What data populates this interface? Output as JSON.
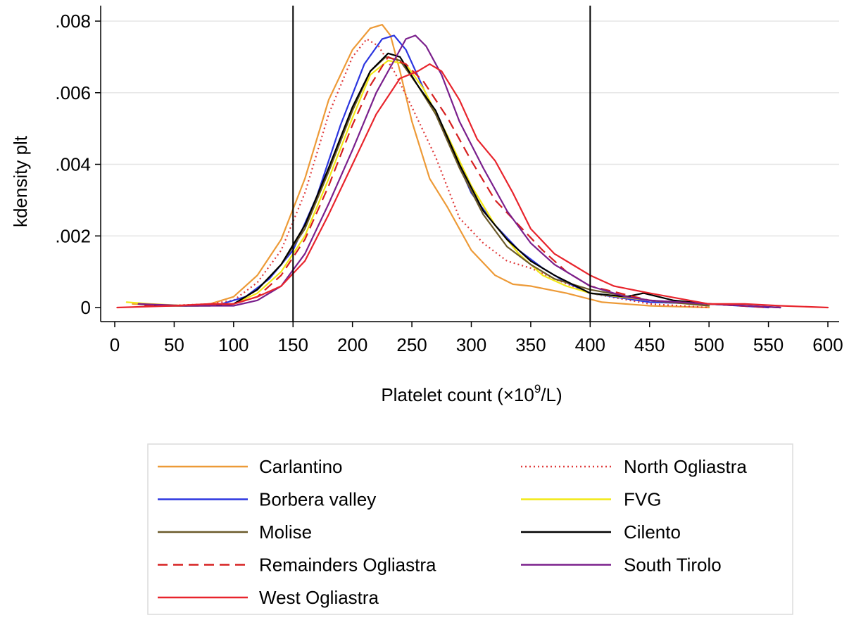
{
  "chart_data": {
    "type": "line",
    "title": "",
    "xlabel": "Platelet count (×10",
    "xlabel_sup": "9",
    "xlabel_suffix": "/L)",
    "ylabel": "kdensity plt",
    "xlim": [
      0,
      600
    ],
    "ylim": [
      0,
      0.008
    ],
    "xticks": [
      0,
      50,
      100,
      150,
      200,
      250,
      300,
      350,
      400,
      450,
      500,
      550,
      600
    ],
    "xtick_labels": [
      "0",
      "50",
      "100",
      "150",
      "200",
      "250",
      "300",
      "350",
      "400",
      "450",
      "500",
      "550",
      "600"
    ],
    "yticks": [
      0,
      0.002,
      0.004,
      0.006,
      0.008
    ],
    "ytick_labels": [
      "0",
      ".002",
      ".004",
      ".006",
      ".008"
    ],
    "grid": true,
    "reference_lines_x": [
      150,
      400
    ],
    "legend_position": "bottom",
    "series": [
      {
        "name": "Carlantino",
        "color": "#ed9a37",
        "dash": "solid",
        "points": [
          [
            15,
            0.0001
          ],
          [
            50,
            5e-05
          ],
          [
            80,
            0.0001
          ],
          [
            100,
            0.0003
          ],
          [
            120,
            0.0009
          ],
          [
            140,
            0.0019
          ],
          [
            160,
            0.0036
          ],
          [
            180,
            0.0058
          ],
          [
            200,
            0.0072
          ],
          [
            215,
            0.0078
          ],
          [
            225,
            0.0079
          ],
          [
            232,
            0.0076
          ],
          [
            240,
            0.0066
          ],
          [
            250,
            0.0052
          ],
          [
            265,
            0.0036
          ],
          [
            280,
            0.0028
          ],
          [
            300,
            0.0016
          ],
          [
            320,
            0.0009
          ],
          [
            335,
            0.00065
          ],
          [
            350,
            0.0006
          ],
          [
            380,
            0.0004
          ],
          [
            410,
            0.00015
          ],
          [
            450,
            5e-05
          ],
          [
            500,
            0.0
          ]
        ]
      },
      {
        "name": "North Ogliastra",
        "color": "#e03a3a",
        "dash": "dotted",
        "points": [
          [
            40,
            5e-05
          ],
          [
            80,
            0.0001
          ],
          [
            100,
            0.0002
          ],
          [
            120,
            0.0007
          ],
          [
            140,
            0.0016
          ],
          [
            160,
            0.0032
          ],
          [
            180,
            0.0054
          ],
          [
            200,
            0.007
          ],
          [
            212,
            0.0075
          ],
          [
            222,
            0.0073
          ],
          [
            235,
            0.0066
          ],
          [
            250,
            0.0056
          ],
          [
            270,
            0.0042
          ],
          [
            290,
            0.0025
          ],
          [
            310,
            0.0018
          ],
          [
            330,
            0.0013
          ],
          [
            350,
            0.0011
          ],
          [
            370,
            0.0008
          ],
          [
            400,
            0.0004
          ],
          [
            450,
            0.0001
          ],
          [
            500,
            0.0
          ]
        ]
      },
      {
        "name": "Borbera valley",
        "color": "#2b35e0",
        "dash": "solid",
        "points": [
          [
            20,
            0.0001
          ],
          [
            60,
            5e-05
          ],
          [
            90,
            0.0001
          ],
          [
            110,
            0.0003
          ],
          [
            130,
            0.0008
          ],
          [
            150,
            0.0016
          ],
          [
            170,
            0.0031
          ],
          [
            190,
            0.0051
          ],
          [
            210,
            0.0068
          ],
          [
            225,
            0.0075
          ],
          [
            235,
            0.0076
          ],
          [
            245,
            0.0072
          ],
          [
            260,
            0.0061
          ],
          [
            280,
            0.0047
          ],
          [
            300,
            0.0032
          ],
          [
            320,
            0.0023
          ],
          [
            340,
            0.0016
          ],
          [
            360,
            0.0011
          ],
          [
            380,
            0.0007
          ],
          [
            400,
            0.0004
          ],
          [
            450,
            0.00015
          ],
          [
            500,
            0.0001
          ],
          [
            550,
            0.0
          ]
        ]
      },
      {
        "name": "FVG",
        "color": "#f2e814",
        "dash": "solid",
        "points": [
          [
            10,
            0.00015
          ],
          [
            30,
            0.0001
          ],
          [
            60,
            5e-05
          ],
          [
            100,
            0.0001
          ],
          [
            120,
            0.0004
          ],
          [
            140,
            0.001
          ],
          [
            160,
            0.002
          ],
          [
            180,
            0.0036
          ],
          [
            200,
            0.0053
          ],
          [
            215,
            0.0065
          ],
          [
            230,
            0.0069
          ],
          [
            245,
            0.0068
          ],
          [
            260,
            0.0061
          ],
          [
            280,
            0.0048
          ],
          [
            300,
            0.0034
          ],
          [
            320,
            0.0023
          ],
          [
            340,
            0.0015
          ],
          [
            360,
            0.0009
          ],
          [
            380,
            0.0006
          ],
          [
            400,
            0.0004
          ],
          [
            450,
            0.0002
          ],
          [
            500,
            5e-05
          ]
        ]
      },
      {
        "name": "Molise",
        "color": "#6b5a2a",
        "dash": "solid",
        "points": [
          [
            30,
            5e-05
          ],
          [
            70,
            5e-05
          ],
          [
            100,
            0.0001
          ],
          [
            120,
            0.0005
          ],
          [
            140,
            0.0012
          ],
          [
            160,
            0.0022
          ],
          [
            180,
            0.0038
          ],
          [
            200,
            0.0055
          ],
          [
            215,
            0.0066
          ],
          [
            228,
            0.007
          ],
          [
            240,
            0.0069
          ],
          [
            255,
            0.0062
          ],
          [
            270,
            0.0054
          ],
          [
            290,
            0.0039
          ],
          [
            310,
            0.0026
          ],
          [
            330,
            0.0017
          ],
          [
            350,
            0.0012
          ],
          [
            370,
            0.0008
          ],
          [
            400,
            0.0005
          ],
          [
            450,
            0.0002
          ],
          [
            500,
            5e-05
          ]
        ]
      },
      {
        "name": "Cilento",
        "color": "#000000",
        "dash": "solid",
        "points": [
          [
            20,
            0.0001
          ],
          [
            40,
            5e-05
          ],
          [
            80,
            5e-05
          ],
          [
            100,
            0.0001
          ],
          [
            120,
            0.0005
          ],
          [
            140,
            0.0012
          ],
          [
            160,
            0.0023
          ],
          [
            180,
            0.0039
          ],
          [
            200,
            0.0056
          ],
          [
            215,
            0.0066
          ],
          [
            230,
            0.0071
          ],
          [
            240,
            0.007
          ],
          [
            255,
            0.0062
          ],
          [
            270,
            0.0055
          ],
          [
            290,
            0.004
          ],
          [
            310,
            0.0027
          ],
          [
            330,
            0.0019
          ],
          [
            350,
            0.0013
          ],
          [
            370,
            0.0009
          ],
          [
            400,
            0.0004
          ],
          [
            430,
            0.0003
          ],
          [
            445,
            0.0004
          ],
          [
            470,
            0.0002
          ],
          [
            500,
            0.0001
          ],
          [
            560,
            0.0
          ]
        ]
      },
      {
        "name": "Remainders Ogliastra",
        "color": "#d62020",
        "dash": "dashed",
        "points": [
          [
            25,
            5e-05
          ],
          [
            60,
            5e-05
          ],
          [
            100,
            0.0001
          ],
          [
            120,
            0.0003
          ],
          [
            140,
            0.0009
          ],
          [
            160,
            0.0019
          ],
          [
            180,
            0.0034
          ],
          [
            200,
            0.0051
          ],
          [
            215,
            0.0062
          ],
          [
            230,
            0.007
          ],
          [
            245,
            0.0068
          ],
          [
            260,
            0.0063
          ],
          [
            280,
            0.0053
          ],
          [
            300,
            0.0041
          ],
          [
            320,
            0.003
          ],
          [
            340,
            0.0023
          ],
          [
            360,
            0.0016
          ],
          [
            380,
            0.001
          ],
          [
            400,
            0.0006
          ],
          [
            450,
            0.0002
          ],
          [
            500,
            0.0001
          ],
          [
            550,
            0.0
          ]
        ]
      },
      {
        "name": "South Tirolo",
        "color": "#7a1f8c",
        "dash": "solid",
        "points": [
          [
            20,
            0.0001
          ],
          [
            60,
            5e-05
          ],
          [
            100,
            5e-05
          ],
          [
            120,
            0.0002
          ],
          [
            140,
            0.0006
          ],
          [
            160,
            0.0015
          ],
          [
            180,
            0.0029
          ],
          [
            200,
            0.0044
          ],
          [
            220,
            0.006
          ],
          [
            235,
            0.0069
          ],
          [
            245,
            0.0075
          ],
          [
            253,
            0.0076
          ],
          [
            262,
            0.0073
          ],
          [
            275,
            0.0065
          ],
          [
            290,
            0.0052
          ],
          [
            310,
            0.0039
          ],
          [
            330,
            0.0027
          ],
          [
            350,
            0.0018
          ],
          [
            370,
            0.0012
          ],
          [
            400,
            0.0006
          ],
          [
            430,
            0.0003
          ],
          [
            450,
            0.0002
          ],
          [
            500,
            0.0001
          ],
          [
            560,
            0.0
          ]
        ]
      },
      {
        "name": "West Ogliastra",
        "color": "#e8242c",
        "dash": "solid",
        "points": [
          [
            2,
            0.0
          ],
          [
            50,
            5e-05
          ],
          [
            80,
            0.0001
          ],
          [
            100,
            0.0001
          ],
          [
            120,
            0.0003
          ],
          [
            140,
            0.0006
          ],
          [
            160,
            0.0013
          ],
          [
            180,
            0.0026
          ],
          [
            200,
            0.004
          ],
          [
            220,
            0.0054
          ],
          [
            240,
            0.0064
          ],
          [
            255,
            0.0066
          ],
          [
            265,
            0.0068
          ],
          [
            275,
            0.0066
          ],
          [
            290,
            0.0058
          ],
          [
            305,
            0.0047
          ],
          [
            320,
            0.0041
          ],
          [
            335,
            0.0032
          ],
          [
            350,
            0.0022
          ],
          [
            370,
            0.0015
          ],
          [
            390,
            0.0011
          ],
          [
            400,
            0.0009
          ],
          [
            420,
            0.0006
          ],
          [
            450,
            0.0004
          ],
          [
            500,
            0.0001
          ],
          [
            530,
            0.0001
          ],
          [
            560,
            5e-05
          ],
          [
            600,
            0.0
          ]
        ]
      }
    ],
    "legend": {
      "left": [
        "Carlantino",
        "Borbera valley",
        "Molise",
        "Remainders Ogliastra",
        "West Ogliastra"
      ],
      "right": [
        "North Ogliastra",
        "FVG",
        "Cilento",
        "South Tirolo"
      ]
    }
  }
}
